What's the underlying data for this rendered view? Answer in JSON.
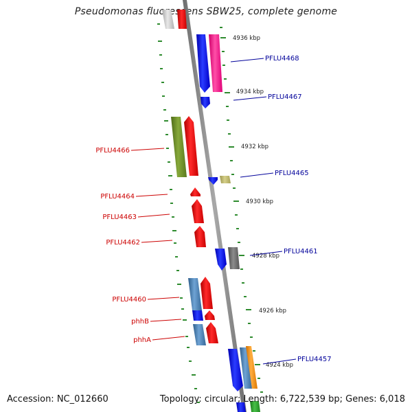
{
  "header": {
    "title": "Pseudomonas fluorescens SBW25, complete genome"
  },
  "footer": {
    "accession": "Accession: NC_012660",
    "summary": "Topology: circular; Length: 6,722,539 bp; Genes: 6,018"
  },
  "scale_ticks": [
    "4936 kbp",
    "4934 kbp",
    "4932 kbp",
    "4930 kbp",
    "4928 kbp",
    "4926 kbp",
    "4924 kbp"
  ],
  "genes": [
    {
      "label": "PFLU4468",
      "strand": "reverse",
      "color": "#0b1fe0"
    },
    {
      "label": "PFLU4467",
      "strand": "reverse",
      "color": "#0b1fe0"
    },
    {
      "label": "PFLU4466",
      "strand": "forward",
      "color": "#ee1111"
    },
    {
      "label": "PFLU4465",
      "strand": "reverse",
      "color": "#0b1fe0"
    },
    {
      "label": "PFLU4464",
      "strand": "forward",
      "color": "#ee1111"
    },
    {
      "label": "PFLU4463",
      "strand": "forward",
      "color": "#ee1111"
    },
    {
      "label": "PFLU4462",
      "strand": "forward",
      "color": "#ee1111"
    },
    {
      "label": "PFLU4461",
      "strand": "reverse",
      "color": "#0b1fe0"
    },
    {
      "label": "PFLU4460",
      "strand": "forward",
      "color": "#ee1111"
    },
    {
      "label": "phhB",
      "strand": "forward",
      "color": "#ee1111"
    },
    {
      "label": "phhA",
      "strand": "forward",
      "color": "#ee1111"
    },
    {
      "label": "PFLU4457",
      "strand": "reverse",
      "color": "#0b1fe0"
    }
  ],
  "colors": {
    "forward_label": "#cc0000",
    "reverse_label": "#00009a",
    "backbone": "#8a8a8a",
    "tick": "#2e8b2e",
    "olive": "#6b8e23",
    "magenta": "#ff1a8c",
    "khaki": "#bdb76b",
    "gray": "#6e6e6e",
    "steelblue": "#4682b4",
    "orange": "#ff8c00",
    "green": "#2a9a2a",
    "lightgray": "#c8c8c8"
  }
}
